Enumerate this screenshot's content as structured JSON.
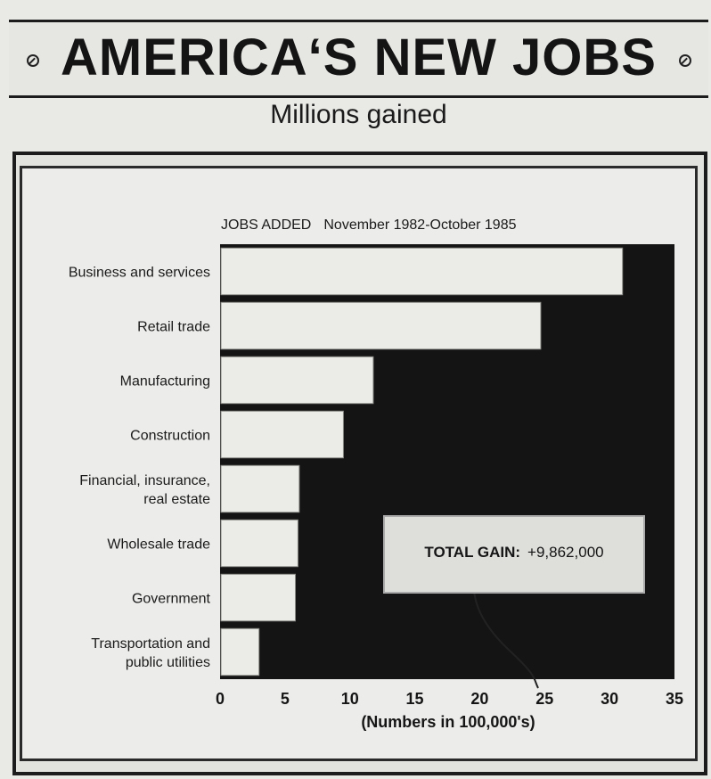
{
  "header": {
    "title": "AMERICA‘S NEW JOBS",
    "subtitle": "Millions gained"
  },
  "chart_data": {
    "type": "bar",
    "orientation": "horizontal",
    "title": "JOBS ADDED",
    "subtitle": "November 1982-October 1985",
    "xlabel": "(Numbers in 100,000's)",
    "ylabel": "",
    "xlim": [
      0,
      35
    ],
    "xticks": [
      0,
      5,
      10,
      15,
      20,
      25,
      30,
      35
    ],
    "grid": false,
    "categories": [
      [
        "Business and services"
      ],
      [
        "Retail trade"
      ],
      [
        "Manufacturing"
      ],
      [
        "Construction"
      ],
      [
        "Financial, insurance,",
        "real estate"
      ],
      [
        "Wholesale trade"
      ],
      [
        "Government"
      ],
      [
        "Transportation and",
        "public utilities"
      ]
    ],
    "values": [
      31,
      24.7,
      11.8,
      9.5,
      6.1,
      6.0,
      5.8,
      3.0
    ],
    "annotation": {
      "label": "TOTAL GAIN:",
      "value": "+9,862,000"
    },
    "colors": {
      "plot_background": "#141414",
      "bar_fill": "#ebebe8",
      "bar_stroke": "#8a8a86"
    }
  }
}
